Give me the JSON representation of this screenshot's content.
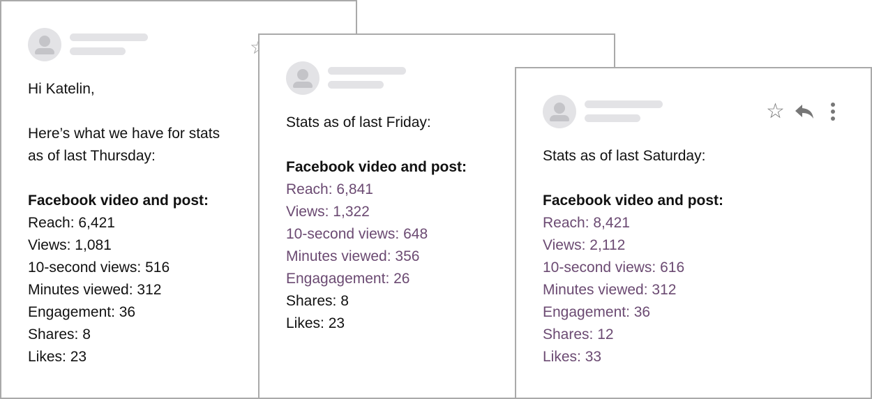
{
  "emails": [
    {
      "greeting": "Hi Katelin,",
      "intro_lines": [
        "Here’s what we have for stats",
        "as of last Thursday:"
      ],
      "section_title": "Facebook video and post:",
      "stats": [
        {
          "text": "Reach: 6,421",
          "changed": false
        },
        {
          "text": "Views: 1,081",
          "changed": false
        },
        {
          "text": "10-second views: 516",
          "changed": false
        },
        {
          "text": "Minutes viewed: 312",
          "changed": false
        },
        {
          "text": "Engagement: 36",
          "changed": false
        },
        {
          "text": "Shares: 8",
          "changed": false
        },
        {
          "text": "Likes: 23",
          "changed": false
        }
      ]
    },
    {
      "intro_lines": [
        "Stats as of last Friday:"
      ],
      "section_title": "Facebook video and post:",
      "stats": [
        {
          "text": "Reach: 6,841",
          "changed": true
        },
        {
          "text": "Views: 1,322",
          "changed": true
        },
        {
          "text": "10-second views: 648",
          "changed": true
        },
        {
          "text": "Minutes viewed: 356",
          "changed": true
        },
        {
          "text": "Engagagement: 26",
          "changed": true
        },
        {
          "text": "Shares: 8",
          "changed": false
        },
        {
          "text": "Likes: 23",
          "changed": false
        }
      ]
    },
    {
      "intro_lines": [
        "Stats as of last Saturday:"
      ],
      "section_title": "Facebook video and post:",
      "stats": [
        {
          "text": "Reach: 8,421",
          "changed": true
        },
        {
          "text": "Views: 2,112",
          "changed": true
        },
        {
          "text": "10-second views: 616",
          "changed": true
        },
        {
          "text": "Minutes viewed: 312",
          "changed": true
        },
        {
          "text": "Engagement: 36",
          "changed": true
        },
        {
          "text": "Shares: 12",
          "changed": true
        },
        {
          "text": "Likes: 33",
          "changed": true
        }
      ]
    }
  ],
  "icons": {
    "star": "star-icon",
    "reply": "reply-icon",
    "more": "more-vertical-icon",
    "avatar": "avatar-placeholder-icon"
  },
  "colors": {
    "changed_text": "#6b4a72",
    "border": "#a9a9a9",
    "placeholder": "#e3e3e6"
  }
}
